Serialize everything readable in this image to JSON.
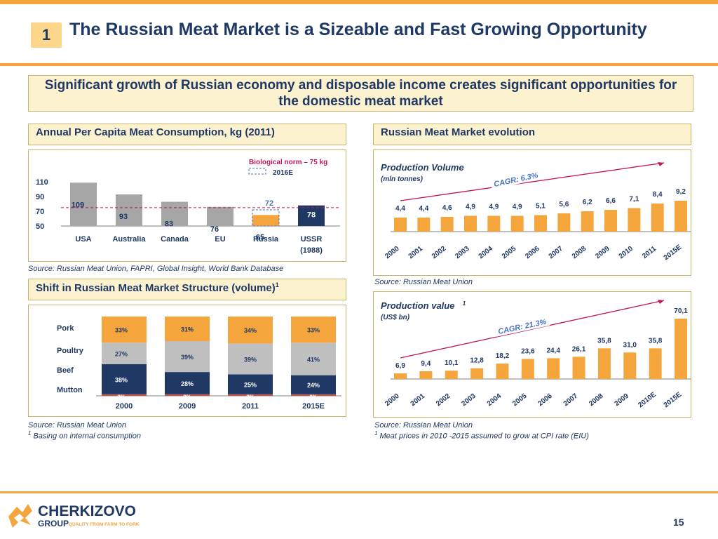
{
  "header": {
    "number": "1",
    "title": "The Russian Meat Market is a Sizeable and Fast Growing Opportunity"
  },
  "banner": {
    "text": "Significant growth of Russian economy and disposable income creates significant opportunities for the domestic meat market"
  },
  "left_top": {
    "heading": "Annual Per Capita Meat Consumption, kg (2011)",
    "source": "Source: Russian Meat Union, FAPRI, Global Insight, World Bank Database"
  },
  "left_bottom": {
    "heading": "Shift in Russian Meat Market Structure (volume)",
    "heading_sup": "1",
    "source": "Source: Russian Meat Union",
    "footnote": "Basing on internal consumption",
    "footnote_sup": "1"
  },
  "right_top": {
    "heading": "Russian Meat Market evolution",
    "source": "Source: Russian Meat Union"
  },
  "right_bottom": {
    "source": "Source: Russian Meat Union",
    "footnote": "Meat prices in 2010 -2015 assumed to grow at CPI rate (EIU)",
    "footnote_sup": "1"
  },
  "footer": {
    "page_number": "15",
    "logo_text": "CHERKIZOVO",
    "logo_sub": "GROUP",
    "logo_tagline": "QUALITY FROM FARM TO FORK"
  },
  "chart_data": [
    {
      "type": "bar",
      "categories": [
        "USA",
        "Australia",
        "Canada",
        "EU",
        "Russia",
        "USSR"
      ],
      "category_sublabels": [
        "",
        "",
        "",
        "",
        "",
        "(1988)"
      ],
      "values": [
        109,
        93,
        83,
        76,
        65,
        78
      ],
      "projected": {
        "category": "Russia",
        "value": 72,
        "label": "2016E"
      },
      "reference_line": {
        "label": "Biological norm – 75 kg",
        "value": 75
      },
      "yticks": [
        50,
        70,
        90,
        110
      ],
      "ylim": [
        50,
        115
      ],
      "colors": {
        "default": "#a6a6a6",
        "russia": "#f4a63c",
        "ussr": "#1f3864",
        "norm": "#c0175c",
        "projected": "#4a73c2"
      }
    },
    {
      "type": "bar",
      "title": "Production Volume",
      "subtitle": "(mln tonnes)",
      "annotation": "CAGR: 6.3%",
      "categories": [
        "2000",
        "2001",
        "2002",
        "2003",
        "2004",
        "2005",
        "2006",
        "2007",
        "2008",
        "2009",
        "2010",
        "2011",
        "2015E"
      ],
      "values": [
        4.4,
        4.4,
        4.6,
        4.9,
        4.9,
        4.9,
        5.1,
        5.6,
        6.2,
        6.6,
        7.1,
        8.4,
        9.2
      ],
      "labels": [
        "4,4",
        "4,4",
        "4,6",
        "4,9",
        "4,9",
        "4,9",
        "5,1",
        "5,6",
        "6,2",
        "6,6",
        "7,1",
        "8,4",
        "9,2"
      ],
      "color": "#f4a63c"
    },
    {
      "type": "bar",
      "title": "Production value",
      "title_sup": "1",
      "subtitle": "(US$ bn)",
      "annotation": "CAGR: 21.3%",
      "categories": [
        "2000",
        "2001",
        "2002",
        "2003",
        "2004",
        "2005",
        "2006",
        "2007",
        "2008",
        "2009",
        "2010E",
        "2015E"
      ],
      "values": [
        6.9,
        9.4,
        10.1,
        12.8,
        18.2,
        23.6,
        24.4,
        26.1,
        35.8,
        31.0,
        35.8,
        70.1
      ],
      "labels": [
        "6,9",
        "9,4",
        "10,1",
        "12,8",
        "18,2",
        "23,6",
        "24,4",
        "26,1",
        "35,8",
        "31,0",
        "35,8",
        "70,1"
      ],
      "color": "#f4a63c"
    },
    {
      "type": "bar",
      "stacked": true,
      "categories": [
        "2000",
        "2009",
        "2011",
        "2015E"
      ],
      "series": [
        {
          "name": "Mutton",
          "values": [
            2,
            2,
            2,
            2
          ],
          "labels": [
            "2%",
            "2%",
            "2%",
            "2%"
          ],
          "color": "#c0504d"
        },
        {
          "name": "Beef",
          "values": [
            38,
            28,
            25,
            24
          ],
          "labels": [
            "38%",
            "28%",
            "25%",
            "24%"
          ],
          "color": "#1f3864"
        },
        {
          "name": "Poultry",
          "values": [
            27,
            39,
            39,
            41
          ],
          "labels": [
            "27%",
            "39%",
            "39%",
            "41%"
          ],
          "color": "#bfbfbf"
        },
        {
          "name": "Pork",
          "values": [
            33,
            31,
            34,
            33
          ],
          "labels": [
            "33%",
            "31%",
            "34%",
            "33%"
          ],
          "color": "#f4a63c"
        }
      ]
    }
  ]
}
